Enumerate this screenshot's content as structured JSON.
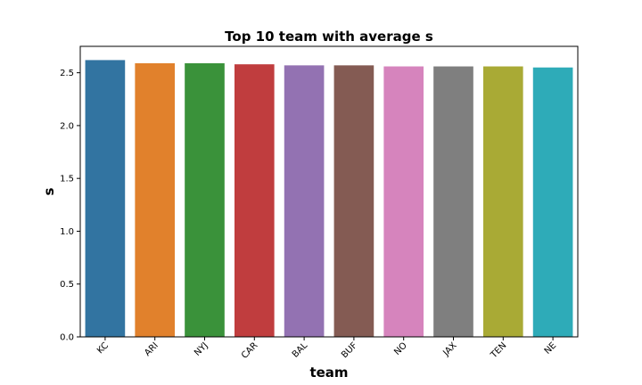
{
  "chart_data": {
    "type": "bar",
    "title": "Top 10 team with average s",
    "xlabel": "team",
    "ylabel": "s",
    "categories": [
      "KC",
      "ARI",
      "NYJ",
      "CAR",
      "BAL",
      "BUF",
      "NO",
      "JAX",
      "TEN",
      "NE"
    ],
    "values": [
      2.62,
      2.59,
      2.59,
      2.58,
      2.57,
      2.57,
      2.56,
      2.56,
      2.56,
      2.55
    ],
    "colors": [
      "#3274a1",
      "#e1812c",
      "#3a923a",
      "#c03d3e",
      "#9372b2",
      "#845b53",
      "#d684bd",
      "#7f7f7f",
      "#a9aa35",
      "#2eabb8"
    ],
    "yticks": [
      "0.0",
      "0.5",
      "1.0",
      "1.5",
      "2.0",
      "2.5"
    ],
    "ylim": [
      0,
      2.75
    ],
    "grid": false,
    "legend": "none"
  }
}
